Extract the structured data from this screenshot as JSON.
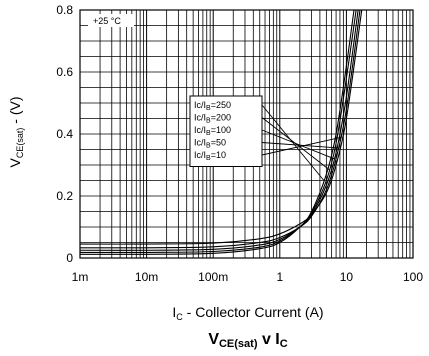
{
  "chart_data": {
    "type": "line",
    "title": {
      "main": "V",
      "main_sub": "CE(sat)",
      "mid": " v I",
      "end_sub": "C"
    },
    "xlabel": {
      "prefix": "I",
      "sub": "C",
      "rest": " - Collector Current (A)"
    },
    "ylabel": {
      "prefix": "V",
      "sub": "CE(sat)",
      "rest": " - (V)"
    },
    "x_scale": "log",
    "xlim": [
      0.001,
      100
    ],
    "ylim": [
      0,
      0.8
    ],
    "x_ticks": [
      {
        "value": 0.001,
        "label": "1m"
      },
      {
        "value": 0.01,
        "label": "10m"
      },
      {
        "value": 0.1,
        "label": "100m"
      },
      {
        "value": 1,
        "label": "1"
      },
      {
        "value": 10,
        "label": "10"
      },
      {
        "value": 100,
        "label": "100"
      }
    ],
    "y_ticks": [
      {
        "value": 0,
        "label": "0"
      },
      {
        "value": 0.2,
        "label": "0.2"
      },
      {
        "value": 0.4,
        "label": "0.4"
      },
      {
        "value": 0.6,
        "label": "0.6"
      },
      {
        "value": 0.8,
        "label": "0.8"
      }
    ],
    "grid": true,
    "annotation": "+25 °C",
    "legend_placement": "center-right",
    "series": [
      {
        "name": "Ic/IB=250",
        "label_prefix": "Ic/I",
        "label_sub": "B",
        "label_ratio": "=250",
        "x": [
          0.001,
          0.01,
          0.1,
          0.5,
          1,
          2,
          3,
          5,
          7,
          10,
          13
        ],
        "y": [
          0.012,
          0.012,
          0.015,
          0.03,
          0.05,
          0.1,
          0.15,
          0.27,
          0.4,
          0.62,
          0.8
        ]
      },
      {
        "name": "Ic/IB=200",
        "label_prefix": "Ic/I",
        "label_sub": "B",
        "label_ratio": "=200",
        "x": [
          0.001,
          0.01,
          0.1,
          0.5,
          1,
          2,
          3,
          5,
          7,
          10,
          14
        ],
        "y": [
          0.018,
          0.018,
          0.021,
          0.035,
          0.055,
          0.1,
          0.145,
          0.25,
          0.37,
          0.58,
          0.8
        ]
      },
      {
        "name": "Ic/IB=100",
        "label_prefix": "Ic/I",
        "label_sub": "B",
        "label_ratio": "=100",
        "x": [
          0.001,
          0.01,
          0.1,
          0.5,
          1,
          2,
          3,
          5,
          7,
          10,
          15
        ],
        "y": [
          0.025,
          0.025,
          0.028,
          0.042,
          0.06,
          0.1,
          0.14,
          0.235,
          0.34,
          0.52,
          0.8
        ]
      },
      {
        "name": "Ic/IB=50",
        "label_prefix": "Ic/I",
        "label_sub": "B",
        "label_ratio": "=50",
        "x": [
          0.001,
          0.01,
          0.1,
          0.5,
          1,
          2,
          3,
          5,
          7,
          10,
          16
        ],
        "y": [
          0.033,
          0.033,
          0.036,
          0.05,
          0.066,
          0.1,
          0.135,
          0.22,
          0.32,
          0.48,
          0.8
        ]
      },
      {
        "name": "Ic/IB=10",
        "label_prefix": "Ic/I",
        "label_sub": "B",
        "label_ratio": "=10",
        "x": [
          0.001,
          0.01,
          0.1,
          0.5,
          1,
          2,
          3,
          5,
          7,
          10,
          17
        ],
        "y": [
          0.045,
          0.045,
          0.048,
          0.062,
          0.078,
          0.11,
          0.14,
          0.21,
          0.3,
          0.45,
          0.8
        ]
      }
    ]
  }
}
